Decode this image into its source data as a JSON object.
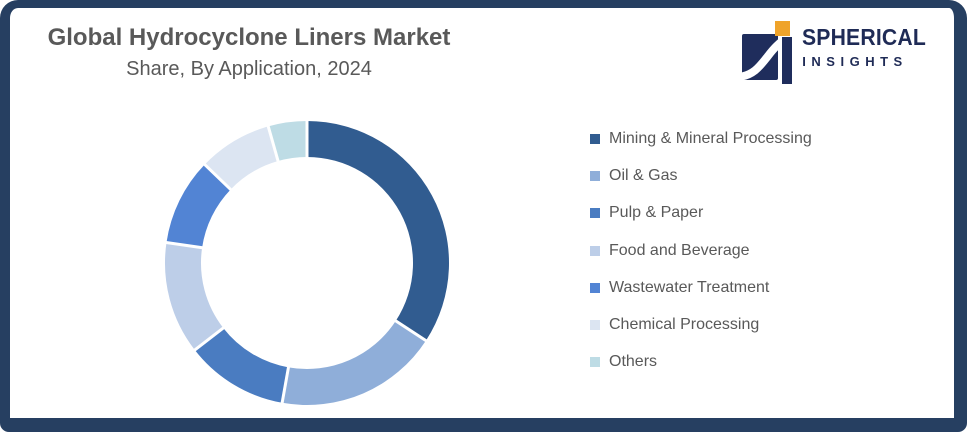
{
  "header": {
    "title": "Global Hydrocyclone Liners Market",
    "subtitle": "Share, By Application, 2024"
  },
  "logo": {
    "name": "SPHERICAL",
    "tagline": "INSIGHTS"
  },
  "colors": {
    "frame": "#263F61",
    "title_text": "#595959",
    "legend_text": "#595959",
    "logo_navy": "#1F2B56",
    "logo_orange": "#EFA32A",
    "gap": "#FFFFFF"
  },
  "chart_data": {
    "type": "pie",
    "subtype": "donut",
    "title": "Global Hydrocyclone Liners Market Share, By Application, 2024",
    "start_angle_deg": 0,
    "direction": "clockwise",
    "inner_radius_ratio": 0.75,
    "data_labels": false,
    "legend_position": "right",
    "values_are_estimates_from_arc_angles": true,
    "segments": [
      {
        "label": "Mining & Mineral Processing",
        "value": 34.2,
        "color": "#315C90"
      },
      {
        "label": "Oil & Gas",
        "value": 18.6,
        "color": "#8FAED9"
      },
      {
        "label": "Pulp & Paper",
        "value": 11.7,
        "color": "#4A7CC1"
      },
      {
        "label": "Food and Beverage",
        "value": 12.8,
        "color": "#BDCEE8"
      },
      {
        "label": "Wastewater Treatment",
        "value": 9.9,
        "color": "#5284D4"
      },
      {
        "label": "Chemical Processing",
        "value": 8.4,
        "color": "#DCE5F2"
      },
      {
        "label": "Others",
        "value": 4.4,
        "color": "#BEDCE5"
      }
    ]
  }
}
